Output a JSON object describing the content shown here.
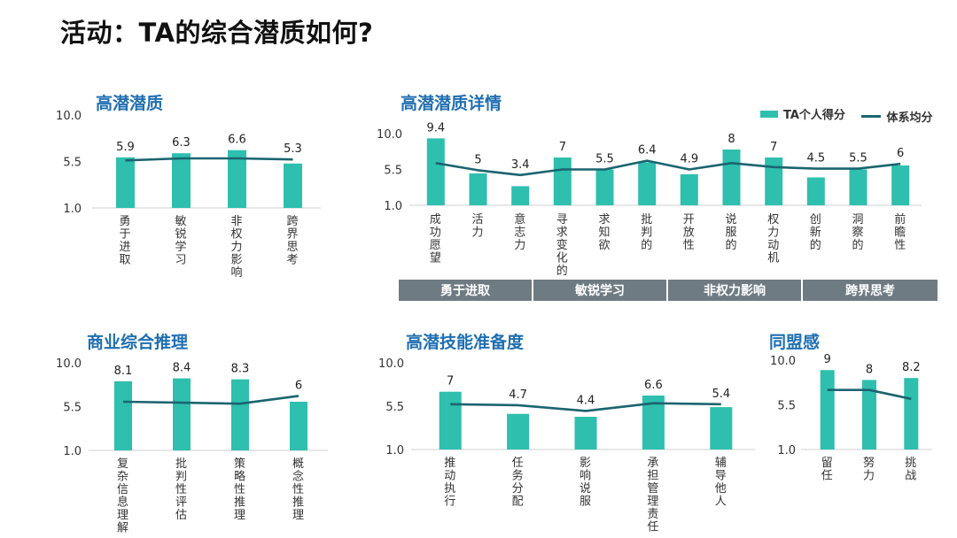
{
  "page": {
    "title": "活动：TA的综合潜质如何?"
  },
  "legend": {
    "bar_label": "TA个人得分",
    "line_label": "体系均分"
  },
  "colors": {
    "bar": "#2ebfae",
    "line": "#1b6470",
    "title": "#1f6fb2",
    "group_bar": "#6f7b83"
  },
  "group_bar": {
    "segments": [
      "勇于进取",
      "敏锐学习",
      "非权力影响",
      "跨界思考"
    ]
  },
  "chart_data": [
    {
      "id": "gaoqian-qianzhi",
      "type": "bar",
      "title": "高潜潜质",
      "categories": [
        "勇于进取",
        "敏锐学习",
        "非权力影响",
        "跨界思考"
      ],
      "series": [
        {
          "name": "TA个人得分",
          "values": [
            5.9,
            6.3,
            6.6,
            5.3
          ],
          "labels": [
            "5.9",
            "6.3",
            "6.6",
            "5.3"
          ]
        },
        {
          "name": "体系均分",
          "values": [
            5.6,
            5.8,
            5.8,
            5.7
          ]
        }
      ],
      "ylim": [
        1.0,
        10.0
      ],
      "yticks": [
        "10.0",
        "5.5",
        "1.0"
      ]
    },
    {
      "id": "gaoqian-xiangqing",
      "type": "bar",
      "title": "高潜潜质详情",
      "categories": [
        "成功愿望",
        "活力",
        "意志力",
        "寻求变化的",
        "求知欲",
        "批判的",
        "开放性",
        "说服的",
        "权力动机",
        "创新的",
        "洞察的",
        "前瞻性"
      ],
      "series": [
        {
          "name": "TA个人得分",
          "values": [
            9.4,
            5,
            3.4,
            7,
            5.5,
            6.4,
            4.9,
            8,
            7,
            4.5,
            5.5,
            6
          ],
          "labels": [
            "9.4",
            "5",
            "3.4",
            "7",
            "5.5",
            "6.4",
            "4.9",
            "8",
            "7",
            "4.5",
            "5.5",
            "6"
          ]
        },
        {
          "name": "体系均分",
          "values": [
            6.3,
            5.4,
            4.8,
            5.5,
            5.5,
            6.6,
            5.5,
            6.3,
            5.8,
            5.6,
            5.6,
            6.2
          ]
        }
      ],
      "ylim": [
        1.0,
        10.0
      ],
      "yticks": [
        "10.0",
        "5.5",
        "1.0"
      ],
      "legend": "top-right"
    },
    {
      "id": "shangye-tuili",
      "type": "bar",
      "title": "商业综合推理",
      "categories": [
        "复杂信息理解",
        "批判性评估",
        "策略性推理",
        "概念性推理"
      ],
      "series": [
        {
          "name": "TA个人得分",
          "values": [
            8.1,
            8.4,
            8.3,
            6
          ],
          "labels": [
            "8.1",
            "8.4",
            "8.3",
            "6"
          ]
        },
        {
          "name": "体系均分",
          "values": [
            6.0,
            5.9,
            5.8,
            6.6
          ]
        }
      ],
      "ylim": [
        1.0,
        10.0
      ],
      "yticks": [
        "10.0",
        "5.5",
        "1.0"
      ]
    },
    {
      "id": "jineng-zhunbei",
      "type": "bar",
      "title": "高潜技能准备度",
      "categories": [
        "推动执行",
        "任务分配",
        "影响说服",
        "承担管理责任",
        "辅导他人"
      ],
      "series": [
        {
          "name": "TA个人得分",
          "values": [
            7,
            4.7,
            4.4,
            6.6,
            5.4
          ],
          "labels": [
            "7",
            "4.7",
            "4.4",
            "6.6",
            "5.4"
          ]
        },
        {
          "name": "体系均分",
          "values": [
            5.7,
            5.6,
            5.0,
            5.8,
            5.7
          ]
        }
      ],
      "ylim": [
        1.0,
        10.0
      ],
      "yticks": [
        "10.0",
        "5.5",
        "1.0"
      ]
    },
    {
      "id": "tongmeng-gan",
      "type": "bar",
      "title": "同盟感",
      "categories": [
        "留任",
        "努力",
        "挑战"
      ],
      "series": [
        {
          "name": "TA个人得分",
          "values": [
            9,
            8,
            8.2
          ],
          "labels": [
            "9",
            "8",
            "8.2"
          ]
        },
        {
          "name": "体系均分",
          "values": [
            7.0,
            7.0,
            6.1
          ]
        }
      ],
      "ylim": [
        1.0,
        10.0
      ],
      "yticks": [
        "10.0",
        "5.5",
        "1.0"
      ]
    }
  ]
}
